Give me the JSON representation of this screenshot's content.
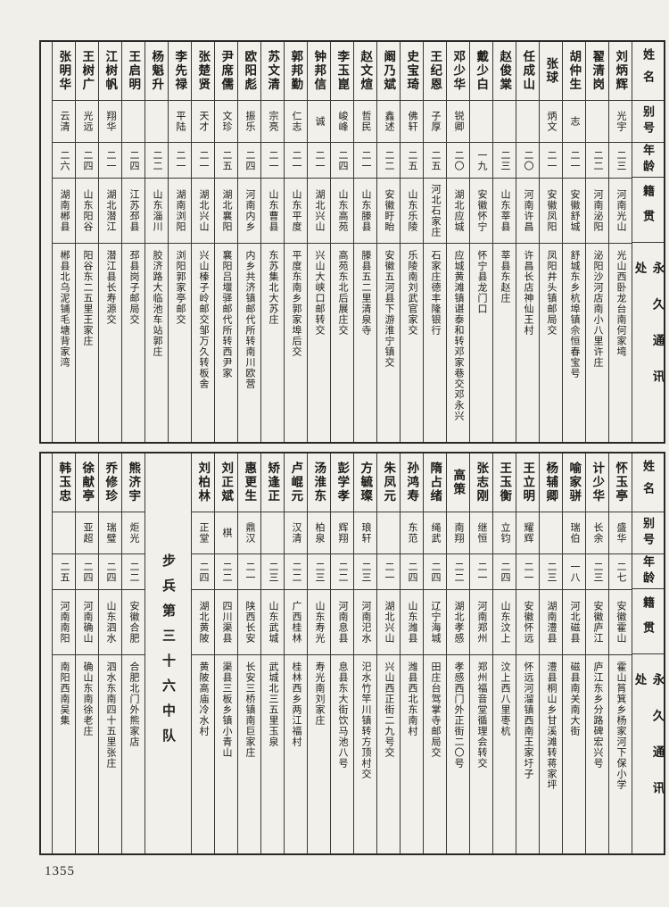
{
  "page_number": "1355",
  "headers": {
    "name": "姓名",
    "byname": "别号",
    "age": "年龄",
    "native": "籍贯",
    "address": "永久通讯处"
  },
  "sections": [
    {
      "persons": [
        {
          "name": "刘炳辉",
          "byname": "光宇",
          "age": "二三",
          "native": "河南光山",
          "address": "光山西卧龙台南何家塆"
        },
        {
          "name": "翟清岗",
          "byname": "",
          "age": "二二",
          "native": "河南泌阳",
          "address": "泌阳沙河店南小八里许庄"
        },
        {
          "name": "胡仲生",
          "byname": "志",
          "age": "二一",
          "native": "安徽舒城",
          "address": "舒城东乡杭埠镇佘恒春宝号"
        },
        {
          "name": "张球",
          "byname": "炳文",
          "age": "二一",
          "native": "安徽凤阳",
          "address": "凤阳井头镇邮局交"
        },
        {
          "name": "任成山",
          "byname": "",
          "age": "二〇",
          "native": "河南许昌",
          "address": "许昌长店神仙王村"
        },
        {
          "name": "赵俊棠",
          "byname": "",
          "age": "二三",
          "native": "山东莘县",
          "address": "莘县东赵庄"
        },
        {
          "name": "戴少白",
          "byname": "",
          "age": "一九",
          "native": "安徽怀宁",
          "address": "怀宁县龙门口"
        },
        {
          "name": "邓少华",
          "byname": "锐卿",
          "age": "二〇",
          "native": "湖北应城",
          "address": "应城黄滩镇谌泰和转邓家巷交邓永兴"
        },
        {
          "name": "王纪恩",
          "byname": "子厚",
          "age": "二五",
          "native": "河北石家庄",
          "address": "石家庄德丰隆银行"
        },
        {
          "name": "史宝琦",
          "byname": "佛轩",
          "age": "二五",
          "native": "山东乐陵",
          "address": "乐陵南刘武官家交"
        },
        {
          "name": "阚乃斌",
          "byname": "鑫述",
          "age": "二二",
          "native": "安徽盱眙",
          "address": "安徽五河县下游淮宁镇交"
        },
        {
          "name": "赵文煊",
          "byname": "哲民",
          "age": "二一",
          "native": "山东滕县",
          "address": "滕县五二里清泉寺"
        },
        {
          "name": "李玉崑",
          "byname": "峻峰",
          "age": "二四",
          "native": "山东高苑",
          "address": "高苑东北后展庄交"
        },
        {
          "name": "钟邦信",
          "byname": "诚",
          "age": "二一",
          "native": "湖北兴山",
          "address": "兴山大峡口邮转交"
        },
        {
          "name": "郭邦勤",
          "byname": "仁志",
          "age": "二一",
          "native": "山东平度",
          "address": "平度东南乡郭家埠后交"
        },
        {
          "name": "苏文清",
          "byname": "宗亮",
          "age": "二一",
          "native": "山东曹县",
          "address": "东苏集北大苏庄"
        },
        {
          "name": "欧阳彪",
          "byname": "振乐",
          "age": "二四",
          "native": "河南内乡",
          "address": "内乡共济镇邮代所转南川欧营"
        },
        {
          "name": "尹席儒",
          "byname": "文珍",
          "age": "二五",
          "native": "湖北襄阳",
          "address": "襄阳吕堰驿邮代所转西尹家"
        },
        {
          "name": "张楚贤",
          "byname": "天才",
          "age": "二一",
          "native": "湖北兴山",
          "address": "兴山榛子岭邮交邹万久转板舍"
        },
        {
          "name": "李先禄",
          "byname": "平陆",
          "age": "二一",
          "native": "湖南浏阳",
          "address": "浏阳郭家亭邮交"
        },
        {
          "name": "杨魁升",
          "byname": "",
          "age": "二二",
          "native": "山东淄川",
          "address": "胶济路大临池车站郭庄"
        },
        {
          "name": "王启明",
          "byname": "",
          "age": "二四",
          "native": "江苏邳县",
          "address": "邳县岗子邮局交"
        },
        {
          "name": "江树帆",
          "byname": "翔华",
          "age": "二一",
          "native": "湖北潜江",
          "address": "潜江县长寿源交"
        },
        {
          "name": "王树广",
          "byname": "光远",
          "age": "二四",
          "native": "山东阳谷",
          "address": "阳谷东二五里王家庄"
        },
        {
          "name": "张明华",
          "byname": "云清",
          "age": "二六",
          "native": "湖南郴县",
          "address": "郴县北乌泥铺毛塘背家湾"
        }
      ]
    },
    {
      "divider_after": 19,
      "divider_label": "步兵第三十六中队",
      "persons": [
        {
          "name": "怀玉亭",
          "byname": "盛华",
          "age": "二七",
          "native": "安徽霍山",
          "address": "霍山筲箕乡杨家河下保小学"
        },
        {
          "name": "计少华",
          "byname": "长余",
          "age": "二三",
          "native": "安徽庐江",
          "address": "庐江东乡分路碑宏兴号"
        },
        {
          "name": "喻家骈",
          "byname": "瑞伯",
          "age": "一八",
          "native": "河北磁县",
          "address": "磁县南关南大街"
        },
        {
          "name": "杨辅卿",
          "byname": "",
          "age": "二三",
          "native": "湖南澧县",
          "address": "澧县桐山乡甘溪滩转蒋家坪"
        },
        {
          "name": "王立明",
          "byname": "耀辉",
          "age": "二一",
          "native": "安徽怀远",
          "address": "怀远河溜镇西南王家圩子"
        },
        {
          "name": "王玉衡",
          "byname": "立钧",
          "age": "二四",
          "native": "山东汶上",
          "address": "汶上西八里枣杭"
        },
        {
          "name": "张志刚",
          "byname": "继恒",
          "age": "二一",
          "native": "河南郑州",
          "address": "郑州福音堂循理会转交"
        },
        {
          "name": "高策",
          "byname": "南翔",
          "age": "二二",
          "native": "湖北孝感",
          "address": "孝感西门外正街二〇号"
        },
        {
          "name": "隋占绪",
          "byname": "绳武",
          "age": "二四",
          "native": "辽宁海城",
          "address": "田庄台驾掌寺邮局交"
        },
        {
          "name": "孙鸿寿",
          "byname": "东范",
          "age": "二四",
          "native": "山东潍县",
          "address": "潍县西北东南村"
        },
        {
          "name": "朱凤元",
          "byname": "",
          "age": "二一",
          "native": "湖北兴山",
          "address": "兴山西正街二九号交"
        },
        {
          "name": "方毓璨",
          "byname": "琅轩",
          "age": "二三",
          "native": "河南汜水",
          "address": "汜水竹竿川镇转方顶村交"
        },
        {
          "name": "彭学孝",
          "byname": "辉翔",
          "age": "二二",
          "native": "河南息县",
          "address": "息县东大街饮马池八号"
        },
        {
          "name": "汤淮东",
          "byname": "柏泉",
          "age": "二三",
          "native": "山东寿光",
          "address": "寿光南刘家庄"
        },
        {
          "name": "卢崐元",
          "byname": "汉清",
          "age": "二二",
          "native": "广西桂林",
          "address": "桂林西乡两江福村"
        },
        {
          "name": "矫逢正",
          "byname": "",
          "age": "二三",
          "native": "山东武城",
          "address": "武城北三五里玉泉"
        },
        {
          "name": "惠更生",
          "byname": "鼎汉",
          "age": "二一",
          "native": "陕西长安",
          "address": "长安三桥镇南巨家庄"
        },
        {
          "name": "刘正斌",
          "byname": "棋",
          "age": "二二",
          "native": "四川渠县",
          "address": "渠县三板乡镇小青山"
        },
        {
          "name": "刘柏林",
          "byname": "正堂",
          "age": "二四",
          "native": "湖北黄陂",
          "address": "黄陂高庙冷水村"
        },
        {
          "name": "熊济宇",
          "byname": "炬光",
          "age": "二二",
          "native": "安徽合肥",
          "address": "合肥北门外熊家店"
        },
        {
          "name": "乔修珍",
          "byname": "瑞璧",
          "age": "二四",
          "native": "山东泗水",
          "address": "泗水东南四十五里张庄"
        },
        {
          "name": "徐献亭",
          "byname": "亚超",
          "age": "二四",
          "native": "河南确山",
          "address": "确山东南徐老庄"
        },
        {
          "name": "韩玉忠",
          "byname": "",
          "age": "二五",
          "native": "河南南阳",
          "address": "南阳西南吴集"
        }
      ]
    }
  ]
}
